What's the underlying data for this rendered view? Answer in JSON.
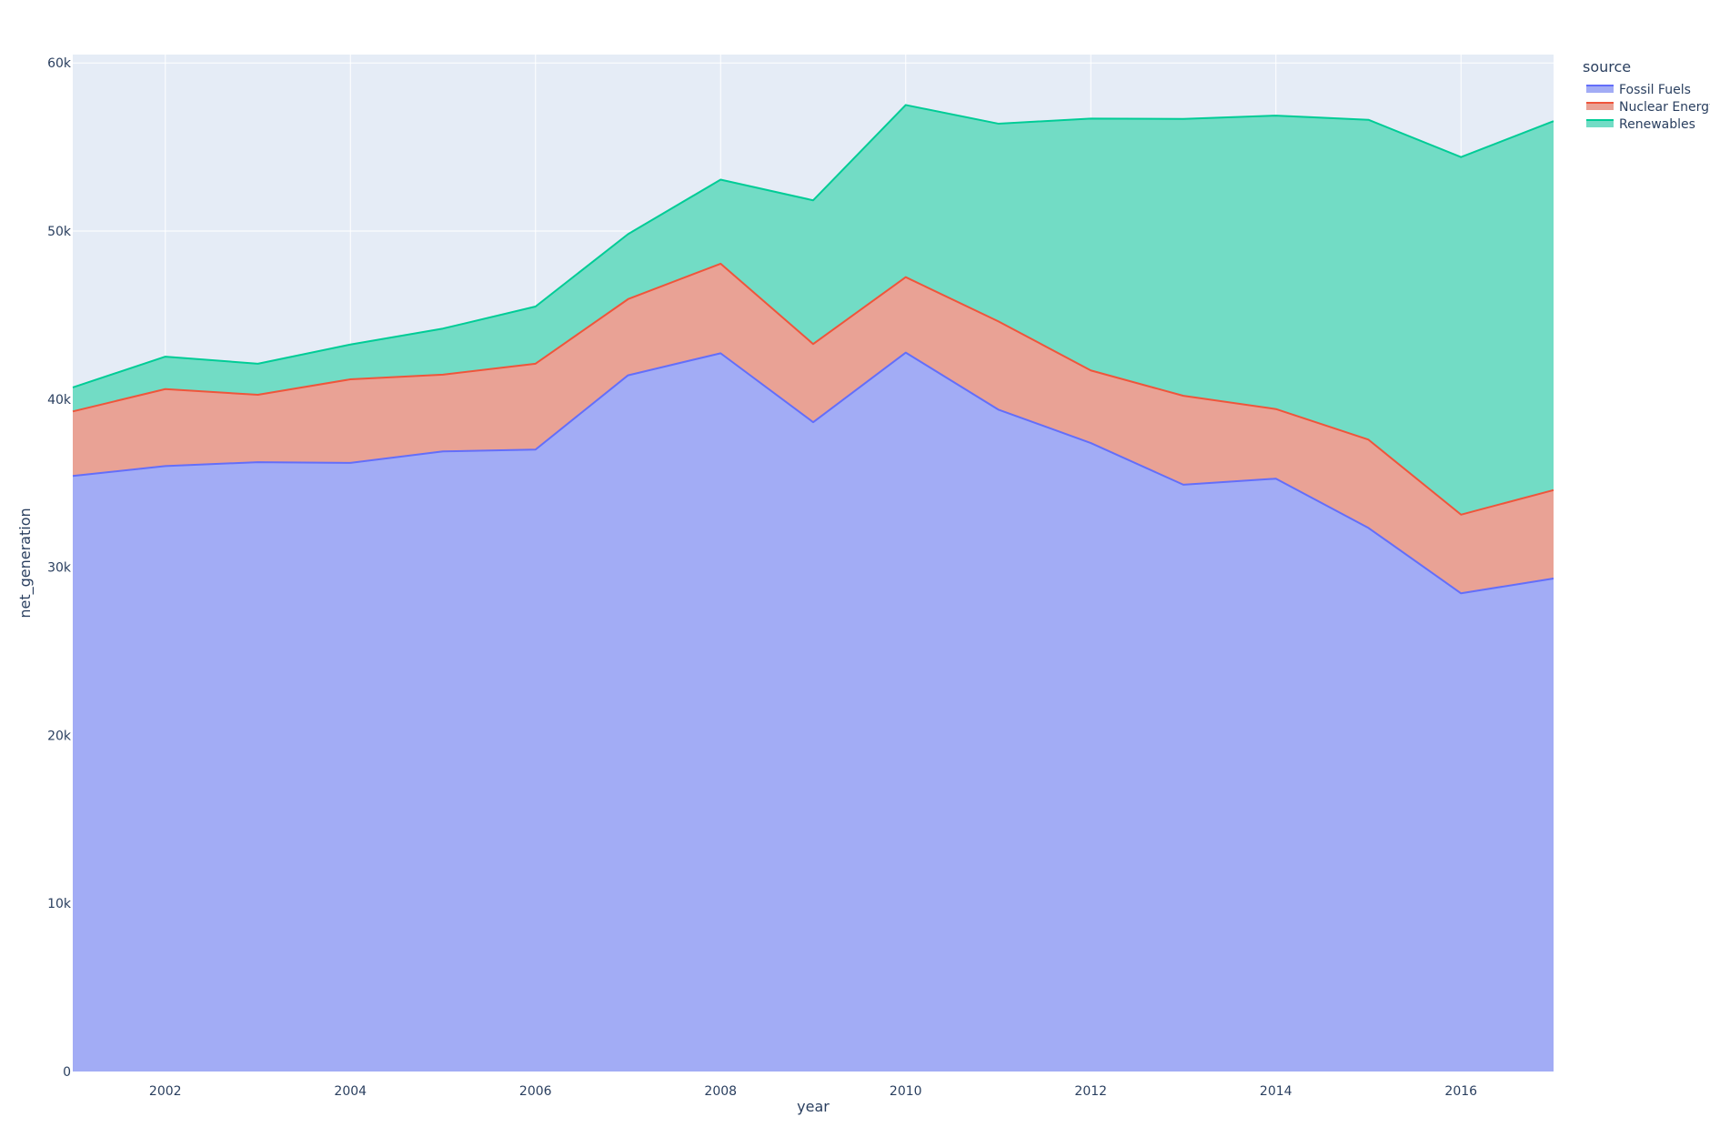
{
  "chart_data": {
    "type": "area",
    "stacked": true,
    "xlabel": "year",
    "ylabel": "net_generation",
    "x": [
      2001,
      2002,
      2003,
      2004,
      2005,
      2006,
      2007,
      2008,
      2009,
      2010,
      2011,
      2012,
      2013,
      2014,
      2015,
      2016,
      2017
    ],
    "xlim": [
      2001,
      2017
    ],
    "ylim": [
      0,
      60500
    ],
    "x_ticks": [
      2002,
      2004,
      2006,
      2008,
      2010,
      2012,
      2014,
      2016
    ],
    "y_ticks": [
      0,
      10000,
      20000,
      30000,
      40000,
      50000,
      60000
    ],
    "y_tick_labels": [
      "0",
      "10k",
      "20k",
      "30k",
      "40k",
      "50k",
      "60k"
    ],
    "grid": true,
    "legend": {
      "title": "source",
      "placement": "top-right-outside"
    },
    "series": [
      {
        "name": "Fossil Fuels",
        "color": "#636efa",
        "fill": "#a2acf5",
        "values": [
          35430,
          36020,
          36250,
          36210,
          36890,
          37000,
          41420,
          42730,
          38630,
          42770,
          39380,
          37390,
          34910,
          35270,
          32340,
          28450,
          29330
        ]
      },
      {
        "name": "Nuclear Energy",
        "color": "#ef553b",
        "fill": "#e9a295",
        "values": [
          3840,
          4580,
          4010,
          4970,
          4570,
          5110,
          4530,
          5330,
          4650,
          4490,
          5250,
          4320,
          5290,
          4140,
          5250,
          4680,
          5260
        ]
      },
      {
        "name": "Renewables",
        "color": "#00cc96",
        "fill": "#72dcc5",
        "values": [
          1430,
          1930,
          1850,
          2070,
          2740,
          3400,
          3870,
          5000,
          8550,
          10240,
          11760,
          14980,
          16470,
          17460,
          19030,
          21270,
          21950
        ]
      }
    ]
  }
}
